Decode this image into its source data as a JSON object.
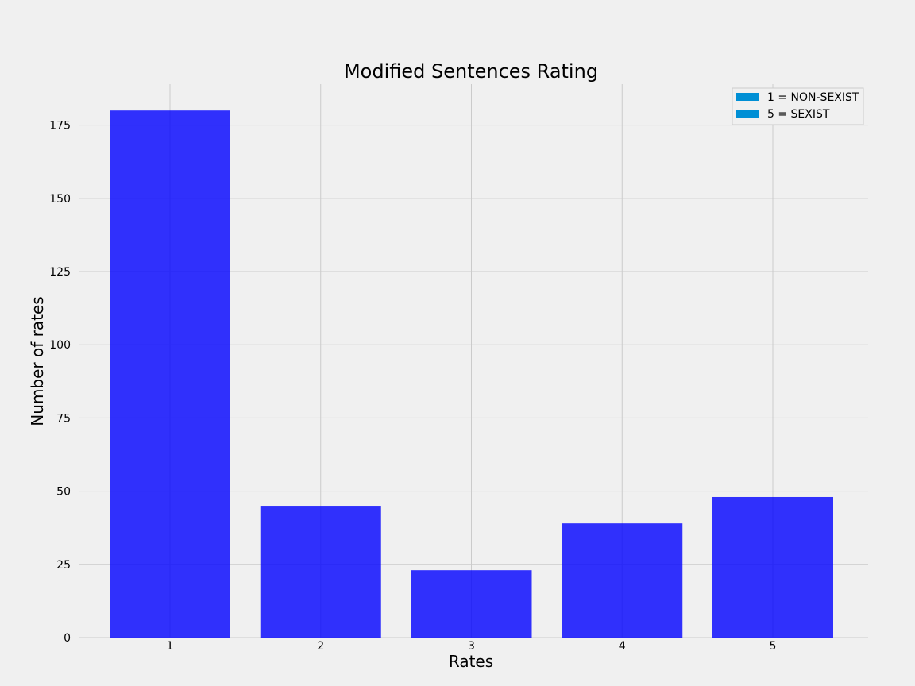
{
  "chart_data": {
    "type": "bar",
    "title": "Modified Sentences Rating",
    "xlabel": "Rates",
    "ylabel": "Number of rates",
    "categories": [
      "1",
      "2",
      "3",
      "4",
      "5"
    ],
    "values": [
      180,
      45,
      23,
      39,
      48
    ],
    "ylim": [
      0,
      189
    ],
    "yticks": [
      0,
      25,
      50,
      75,
      100,
      125,
      150,
      175
    ],
    "grid": true,
    "bar_color": "#0000ff",
    "legend": {
      "placement": "top-right",
      "entries": [
        {
          "label": "1 = NON-SEXIST",
          "color": "#008fd5"
        },
        {
          "label": "5 = SEXIST",
          "color": "#008fd5"
        }
      ]
    }
  }
}
